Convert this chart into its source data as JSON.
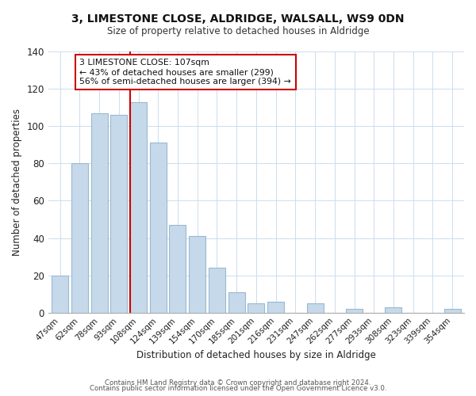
{
  "title1": "3, LIMESTONE CLOSE, ALDRIDGE, WALSALL, WS9 0DN",
  "title2": "Size of property relative to detached houses in Aldridge",
  "xlabel": "Distribution of detached houses by size in Aldridge",
  "ylabel": "Number of detached properties",
  "bar_labels": [
    "47sqm",
    "62sqm",
    "78sqm",
    "93sqm",
    "108sqm",
    "124sqm",
    "139sqm",
    "154sqm",
    "170sqm",
    "185sqm",
    "201sqm",
    "216sqm",
    "231sqm",
    "247sqm",
    "262sqm",
    "277sqm",
    "293sqm",
    "308sqm",
    "323sqm",
    "339sqm",
    "354sqm"
  ],
  "bar_values": [
    20,
    80,
    107,
    106,
    113,
    91,
    47,
    41,
    24,
    11,
    5,
    6,
    0,
    5,
    0,
    2,
    0,
    3,
    0,
    0,
    2
  ],
  "bar_color": "#c6d9ea",
  "bar_edge_color": "#9ab8d0",
  "vline_color": "#cc0000",
  "ylim": [
    0,
    140
  ],
  "yticks": [
    0,
    20,
    40,
    60,
    80,
    100,
    120,
    140
  ],
  "annotation_title": "3 LIMESTONE CLOSE: 107sqm",
  "annotation_line1": "← 43% of detached houses are smaller (299)",
  "annotation_line2": "56% of semi-detached houses are larger (394) →",
  "annotation_box_color": "#ffffff",
  "annotation_border_color": "#cc0000",
  "footer1": "Contains HM Land Registry data © Crown copyright and database right 2024.",
  "footer2": "Contains public sector information licensed under the Open Government Licence v3.0."
}
